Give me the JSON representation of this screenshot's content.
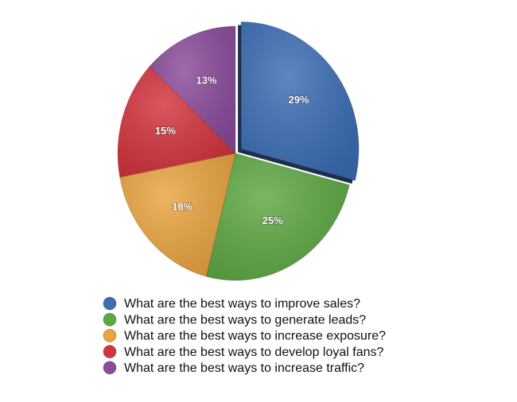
{
  "chart_data": {
    "type": "pie",
    "categories": [
      "What are the best ways to improve sales?",
      "What are the best ways to generate leads?",
      "What are the best ways to increase exposure?",
      "What are the best ways to develop loyal fans?",
      "What are the best ways to increase traffic?"
    ],
    "values": [
      29,
      25,
      18,
      15,
      13
    ],
    "value_labels": [
      "29%",
      "25%",
      "18%",
      "15%",
      "13%"
    ],
    "colors": [
      "#3b6db5",
      "#5ea844",
      "#eaa43f",
      "#d3333c",
      "#8b4b9b"
    ],
    "exploded": [
      0
    ]
  }
}
